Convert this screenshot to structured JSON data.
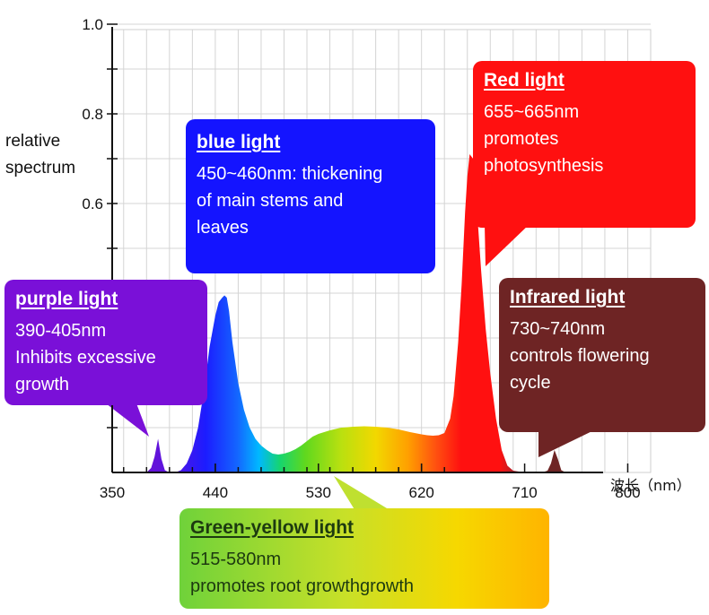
{
  "chart_data": {
    "type": "area",
    "ylabel_lines": [
      "relative",
      "spectrum"
    ],
    "xlabel": "波长（nm）",
    "xlim": [
      350,
      820
    ],
    "ylim": [
      0,
      1.0
    ],
    "x_ticks": [
      350,
      440,
      530,
      620,
      710,
      800
    ],
    "y_ticks": [
      0.6,
      0.8,
      1.0
    ],
    "y_tick_labels": [
      "0.6",
      "0.8",
      "1.0"
    ],
    "grid": true,
    "series": [
      {
        "x": [
          350,
          380,
          384,
          387,
          390,
          393,
          396,
          400,
          405,
          410,
          415,
          420,
          425,
          430,
          435,
          440,
          443,
          446,
          448,
          450,
          452,
          455,
          460,
          465,
          470,
          475,
          480,
          485,
          490,
          495,
          500,
          505,
          510,
          515,
          520,
          525,
          530,
          540,
          550,
          560,
          570,
          580,
          590,
          600,
          610,
          620,
          625,
          630,
          635,
          640,
          645,
          648,
          652,
          655,
          658,
          660,
          662,
          665,
          668,
          672,
          676,
          680,
          685,
          690,
          695,
          700,
          710,
          725,
          730,
          733,
          736,
          739,
          742,
          746,
          750,
          760,
          820
        ],
        "y": [
          0,
          0,
          0.01,
          0.035,
          0.075,
          0.03,
          0.005,
          0,
          0,
          0.005,
          0.02,
          0.05,
          0.1,
          0.18,
          0.28,
          0.35,
          0.38,
          0.39,
          0.395,
          0.39,
          0.36,
          0.29,
          0.2,
          0.14,
          0.1,
          0.075,
          0.06,
          0.05,
          0.042,
          0.04,
          0.042,
          0.046,
          0.052,
          0.06,
          0.07,
          0.08,
          0.086,
          0.094,
          0.1,
          0.102,
          0.103,
          0.102,
          0.1,
          0.096,
          0.09,
          0.085,
          0.083,
          0.082,
          0.083,
          0.088,
          0.12,
          0.17,
          0.29,
          0.42,
          0.58,
          0.66,
          0.71,
          0.7,
          0.6,
          0.45,
          0.32,
          0.22,
          0.12,
          0.05,
          0.015,
          0.004,
          0,
          0,
          0.004,
          0.02,
          0.05,
          0.03,
          0.005,
          0,
          0,
          0,
          0
        ]
      }
    ]
  },
  "callouts": {
    "purple": {
      "title": "purple light",
      "lines": [
        "390-405nm",
        "Inhibits excessive",
        "growth"
      ],
      "color": "#7a10d8"
    },
    "blue": {
      "title": "blue light",
      "lines": [
        "450~460nm: thickening",
        "of main stems and",
        "leaves"
      ],
      "color": "#1414ff"
    },
    "red": {
      "title": "Red light",
      "lines": [
        "655~665nm",
        "promotes",
        "photosynthesis"
      ],
      "color": "#ff1010"
    },
    "infrared": {
      "title": "Infrared light",
      "lines": [
        "730~740nm",
        "controls flowering",
        "cycle"
      ],
      "color": "#6e2424"
    },
    "green_yellow": {
      "title": "Green-yellow light",
      "lines": [
        "515-580nm",
        "promotes root growthgrowth"
      ],
      "color": "#9bd12e"
    }
  }
}
